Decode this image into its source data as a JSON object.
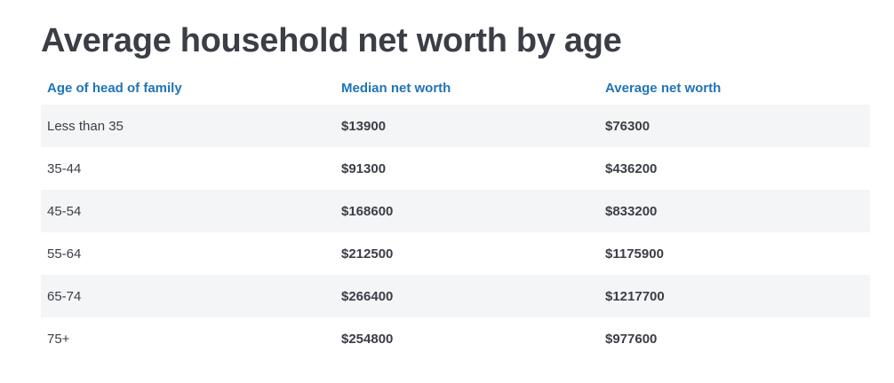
{
  "title": "Average household net worth by age",
  "colors": {
    "title": "#3b3e46",
    "header_text": "#1f74b8",
    "row_shade": "#f4f5f7",
    "body_text": "#3b3e46"
  },
  "table": {
    "headers": [
      "Age of head of family",
      "Median net worth",
      "Average net worth"
    ],
    "rows": [
      {
        "age": "Less than 35",
        "median": "$13900",
        "average": "$76300"
      },
      {
        "age": "35-44",
        "median": "$91300",
        "average": "$436200"
      },
      {
        "age": "45-54",
        "median": "$168600",
        "average": "$833200"
      },
      {
        "age": "55-64",
        "median": "$212500",
        "average": "$1175900"
      },
      {
        "age": "65-74",
        "median": "$266400",
        "average": "$1217700"
      },
      {
        "age": "75+",
        "median": "$254800",
        "average": "$977600"
      }
    ]
  }
}
